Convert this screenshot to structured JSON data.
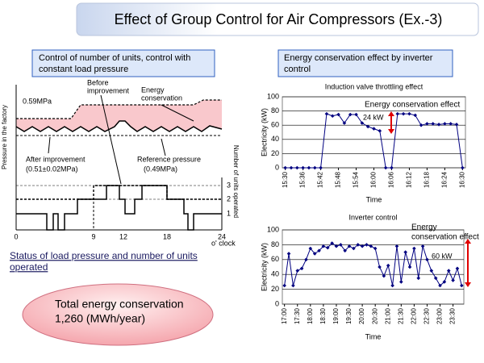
{
  "title": "Effect of Group Control for Air Compressors (Ex.-3)",
  "left_panel": {
    "heading": [
      "Control of number of units, control with",
      "constant load pressure"
    ],
    "diagram": {
      "y_label": "Pressure in the factory",
      "y2_label": "Number of units operated",
      "upper_pressure": "0.59MPa",
      "before": [
        "Before",
        "improvement"
      ],
      "energy": [
        "Energy",
        "conservation"
      ],
      "after": [
        "After improvement",
        "(0.51±0.02MPa)"
      ],
      "reference": [
        "Reference pressure",
        "(0.49MPa)"
      ],
      "x_ticks": [
        "0",
        "9",
        "12",
        "18",
        "24"
      ],
      "x_unit": "o' clock",
      "unit_ticks": [
        "3",
        "2",
        "1"
      ]
    },
    "caption": [
      "Status of load pressure and number of units",
      "operated"
    ]
  },
  "summary": [
    "Total energy conservation",
    "1,260 (MWh/year)"
  ],
  "right_panel": {
    "heading": [
      "Energy conservation effect by inverter",
      "control"
    ]
  },
  "chart_data": [
    {
      "type": "line",
      "title": "Induction valve throttling effect",
      "x_label": "Time",
      "y_label": "Electricity (kW)",
      "categories": [
        "15:30",
        null,
        null,
        "15:36",
        null,
        null,
        "15:42",
        null,
        null,
        "15:48",
        null,
        null,
        "15:54",
        null,
        null,
        "16:00",
        null,
        null,
        "16:06",
        null,
        null,
        "16:12",
        null,
        null,
        "16:18",
        null,
        null,
        "16:24",
        null,
        null,
        "16:30"
      ],
      "series": [
        {
          "color": "#000080",
          "values": [
            0,
            0,
            0,
            0,
            0,
            0,
            0,
            76,
            73,
            75,
            63,
            75,
            75,
            63,
            58,
            55,
            52,
            0,
            0,
            76,
            76,
            76,
            74,
            60,
            62,
            62,
            61,
            62,
            62,
            61,
            0
          ]
        }
      ],
      "ylim": [
        0,
        100
      ],
      "yticks": [
        0,
        20,
        40,
        60,
        80,
        100
      ],
      "grid": true,
      "annotations": [
        "Energy conservation effect",
        "24 kW"
      ]
    },
    {
      "type": "line",
      "title": "Inverter control",
      "x_label": "Time",
      "y_label": "Electricity (kW)",
      "categories": [
        "17:00",
        null,
        null,
        "17:30",
        null,
        null,
        "18:00",
        null,
        null,
        "18:30",
        null,
        null,
        "19:00",
        null,
        null,
        "19:30",
        null,
        null,
        "20:00",
        null,
        null,
        "20:30",
        null,
        null,
        "21:00",
        null,
        null,
        "21:30",
        null,
        null,
        "22:00",
        null,
        null,
        "22:30",
        null,
        null,
        "23:00",
        null,
        null,
        "23:30",
        null,
        null
      ],
      "series": [
        {
          "color": "#000080",
          "values": [
            25,
            68,
            25,
            45,
            48,
            60,
            75,
            68,
            72,
            78,
            76,
            82,
            78,
            80,
            72,
            78,
            75,
            80,
            78,
            80,
            78,
            75,
            50,
            38,
            52,
            25,
            78,
            30,
            70,
            50,
            75,
            35,
            78,
            60,
            45,
            35,
            25,
            30,
            45,
            32,
            48,
            25
          ]
        }
      ],
      "ylim": [
        0,
        100
      ],
      "yticks": [
        0,
        20,
        40,
        60,
        80,
        100
      ],
      "grid": true,
      "annotations": [
        "Energy",
        "conservation effect",
        "60 kW"
      ]
    }
  ]
}
